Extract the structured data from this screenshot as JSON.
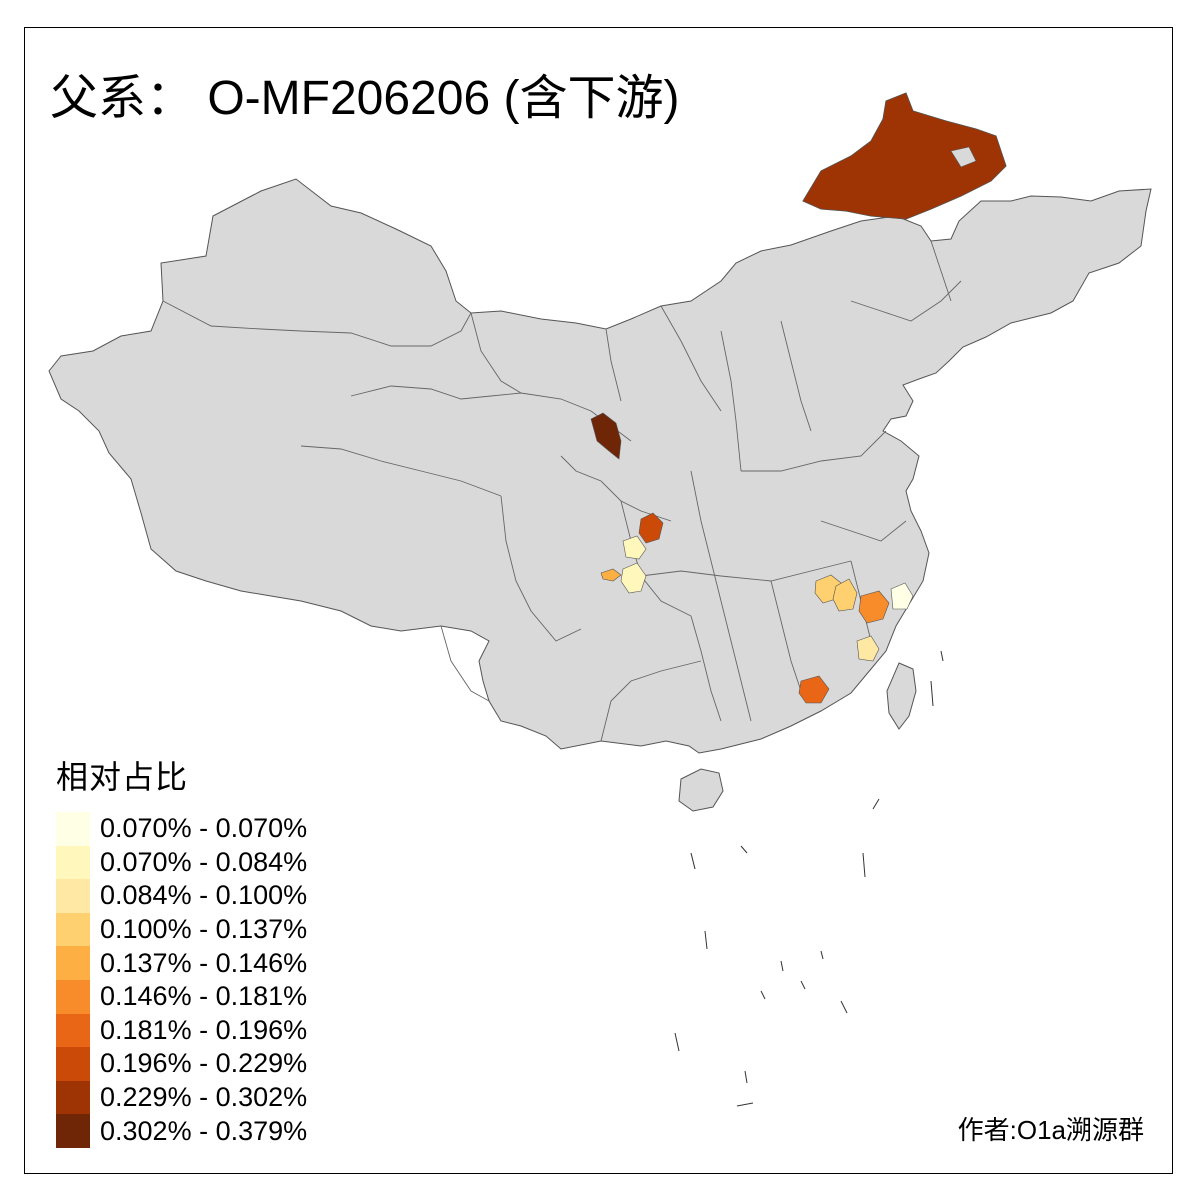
{
  "title": "父系： O-MF206206 (含下游)",
  "legend": {
    "title": "相对占比",
    "items": [
      {
        "label": "0.070% - 0.070%",
        "color": "#FFFFE5"
      },
      {
        "label": "0.070% - 0.084%",
        "color": "#FFF7BC"
      },
      {
        "label": "0.084% - 0.100%",
        "color": "#FEE8A4"
      },
      {
        "label": "0.100% - 0.137%",
        "color": "#FED06F"
      },
      {
        "label": "0.137% - 0.146%",
        "color": "#FDAF43"
      },
      {
        "label": "0.146% - 0.181%",
        "color": "#F88B2A"
      },
      {
        "label": "0.181% - 0.196%",
        "color": "#E86616"
      },
      {
        "label": "0.196% - 0.229%",
        "color": "#CC4A08"
      },
      {
        "label": "0.229% - 0.302%",
        "color": "#9E3404"
      },
      {
        "label": "0.302% - 0.379%",
        "color": "#6E2606"
      }
    ]
  },
  "author": "作者:O1a溯源群",
  "map_colors": {
    "base_fill": "#D9D9D9",
    "border": "#555555"
  }
}
